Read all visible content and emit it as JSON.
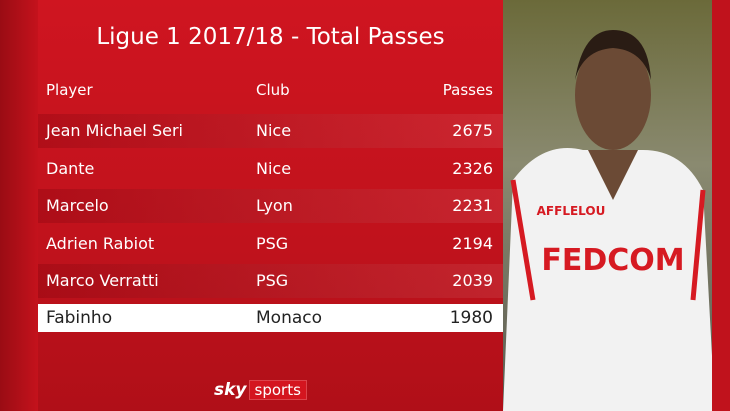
{
  "header": {
    "title": "Ligue 1 2017/18 - Total Passes"
  },
  "table": {
    "columns": [
      "Player",
      "Club",
      "Passes"
    ],
    "rows": [
      [
        "Jean Michael Seri",
        "Nice",
        2675
      ],
      [
        "Dante",
        "Nice",
        2326
      ],
      [
        "Marcelo",
        "Lyon",
        2231
      ],
      [
        "Adrien Rabiot",
        "PSG",
        2194
      ],
      [
        "Marco Verratti",
        "PSG",
        2039
      ],
      [
        "Fabinho",
        "Monaco",
        1980
      ]
    ]
  },
  "photo": {
    "shirt_sponsor": "FEDCOM",
    "shirt_brand": "AFFLELOU"
  },
  "footer": {
    "logo_sky": "sky",
    "logo_sports": "sports"
  }
}
